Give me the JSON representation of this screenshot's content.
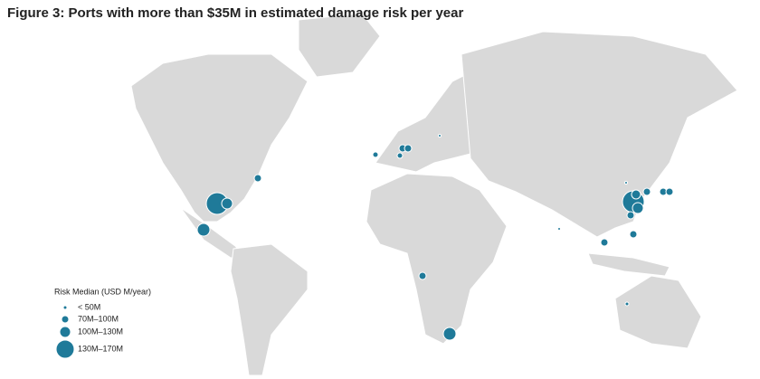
{
  "header": {
    "title": "Figure 3: Ports with more than $35M in estimated damage risk per year"
  },
  "legend": {
    "title": "Risk Median (USD M/year)",
    "items": [
      "< 50M",
      "70M–100M",
      "100M–130M",
      "130M–170M"
    ]
  }
}
